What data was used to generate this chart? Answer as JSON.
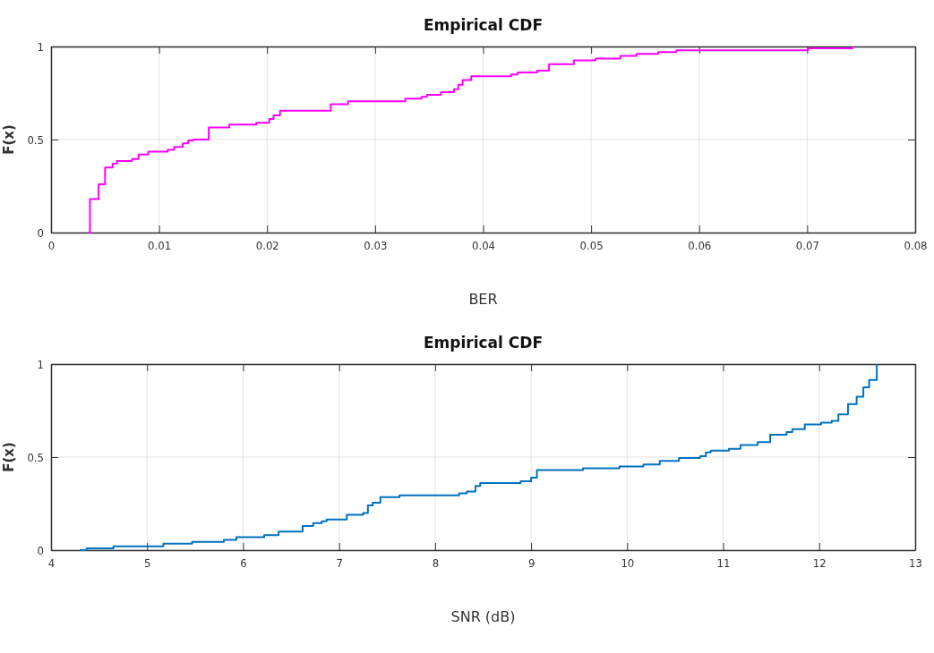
{
  "chart_data": [
    {
      "type": "step",
      "title": "Empirical CDF",
      "xlabel": "BER",
      "ylabel": "F(x)",
      "xlim": [
        0,
        0.08
      ],
      "xticks": [
        0,
        0.01,
        0.02,
        0.03,
        0.04,
        0.05,
        0.06,
        0.07,
        0.08
      ],
      "ylim": [
        0,
        1
      ],
      "yticks": [
        0,
        0.5,
        1
      ],
      "grid": true,
      "series": [
        {
          "color": "#ff00ff",
          "x": [
            0.0034,
            0.0036,
            0.0044,
            0.005,
            0.0057,
            0.0061,
            0.0075,
            0.0081,
            0.009,
            0.0108,
            0.0114,
            0.0122,
            0.0127,
            0.0132,
            0.0146,
            0.0165,
            0.019,
            0.0202,
            0.0206,
            0.0212,
            0.0259,
            0.0275,
            0.0328,
            0.0343,
            0.0348,
            0.0361,
            0.0373,
            0.0377,
            0.0381,
            0.0389,
            0.0426,
            0.0432,
            0.045,
            0.0461,
            0.0484,
            0.0504,
            0.0527,
            0.0542,
            0.0562,
            0.0579,
            0.0701,
            0.0742
          ],
          "values": [
            0,
            0.18,
            0.26,
            0.35,
            0.37,
            0.385,
            0.395,
            0.42,
            0.435,
            0.445,
            0.46,
            0.48,
            0.495,
            0.5,
            0.565,
            0.58,
            0.59,
            0.61,
            0.63,
            0.655,
            0.69,
            0.705,
            0.72,
            0.73,
            0.74,
            0.755,
            0.77,
            0.795,
            0.82,
            0.84,
            0.85,
            0.86,
            0.87,
            0.905,
            0.925,
            0.935,
            0.95,
            0.96,
            0.97,
            0.98,
            0.99,
            1
          ]
        }
      ]
    },
    {
      "type": "step",
      "title": "Empirical CDF",
      "xlabel": "SNR (dB)",
      "ylabel": "F(x)",
      "xlim": [
        4,
        13
      ],
      "xticks": [
        4,
        5,
        6,
        7,
        8,
        9,
        10,
        11,
        12,
        13
      ],
      "ylim": [
        0,
        1
      ],
      "yticks": [
        0,
        0.5,
        1
      ],
      "grid": true,
      "series": [
        {
          "color": "#0072bd",
          "x": [
            4.3,
            4.37,
            4.65,
            5.17,
            5.47,
            5.8,
            5.93,
            6.22,
            6.37,
            6.62,
            6.73,
            6.82,
            6.87,
            7.08,
            7.25,
            7.3,
            7.35,
            7.43,
            7.63,
            8.25,
            8.33,
            8.42,
            8.47,
            8.89,
            9.0,
            9.06,
            9.54,
            9.92,
            10.17,
            10.34,
            10.54,
            10.76,
            10.82,
            10.87,
            11.06,
            11.18,
            11.36,
            11.49,
            11.66,
            11.72,
            11.85,
            12.02,
            12.13,
            12.2,
            12.3,
            12.39,
            12.46,
            12.52,
            12.6
          ],
          "values": [
            0,
            0.01,
            0.02,
            0.035,
            0.045,
            0.055,
            0.07,
            0.08,
            0.1,
            0.13,
            0.145,
            0.155,
            0.165,
            0.19,
            0.2,
            0.24,
            0.255,
            0.285,
            0.295,
            0.305,
            0.315,
            0.345,
            0.36,
            0.37,
            0.39,
            0.43,
            0.44,
            0.45,
            0.46,
            0.48,
            0.495,
            0.505,
            0.525,
            0.535,
            0.545,
            0.565,
            0.58,
            0.62,
            0.635,
            0.65,
            0.675,
            0.685,
            0.695,
            0.73,
            0.785,
            0.825,
            0.875,
            0.915,
            1
          ]
        }
      ]
    }
  ]
}
